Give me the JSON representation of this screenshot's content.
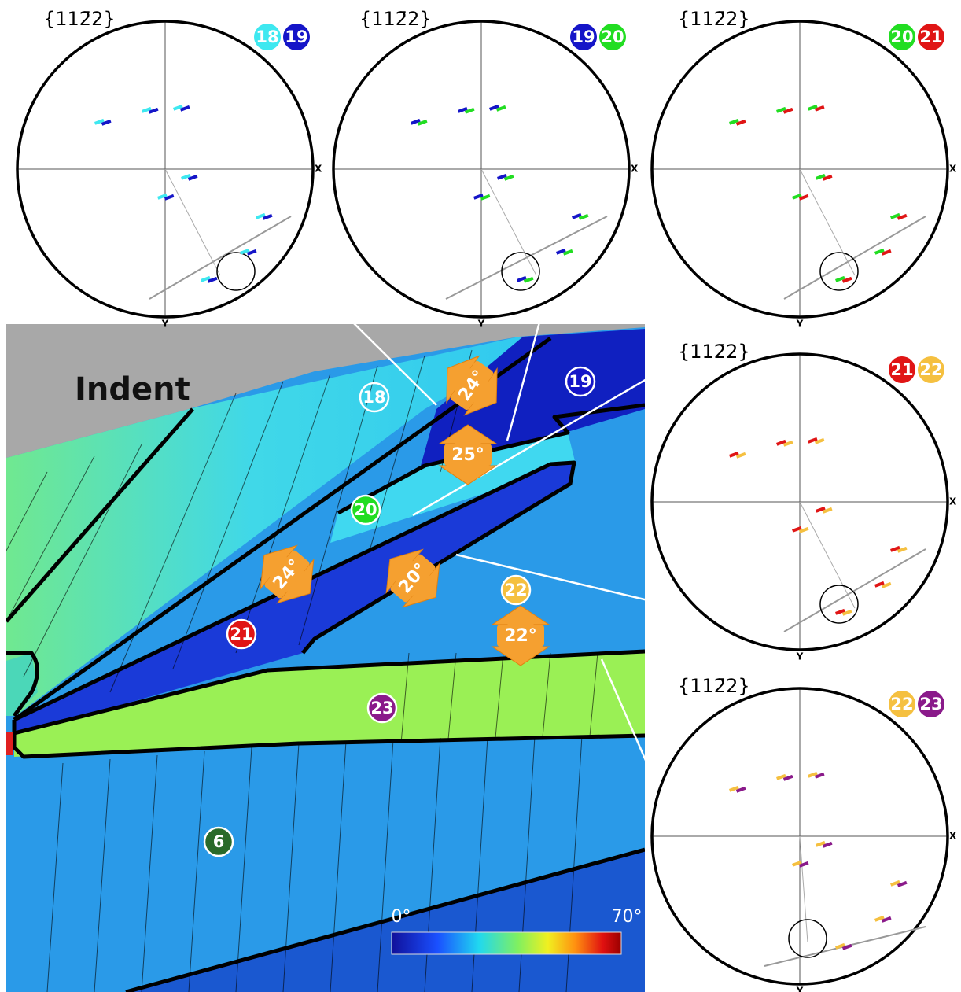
{
  "pole_figures": [
    {
      "label": "{112̄2}",
      "grains": [
        "18",
        "19"
      ],
      "x_axis": "X",
      "y_axis": "Y"
    },
    {
      "label": "{112̄2}",
      "grains": [
        "19",
        "20"
      ],
      "x_axis": "X",
      "y_axis": "Y"
    },
    {
      "label": "{112̄2}",
      "grains": [
        "20",
        "21"
      ],
      "x_axis": "X",
      "y_axis": "Y"
    },
    {
      "label": "{112̄2}",
      "grains": [
        "21",
        "22"
      ],
      "x_axis": "X",
      "y_axis": "Y"
    },
    {
      "label": "{112̄2}",
      "grains": [
        "22",
        "23"
      ],
      "x_axis": "X",
      "y_axis": "Y"
    }
  ],
  "map": {
    "title": "Indent",
    "grains": [
      "18",
      "19",
      "20",
      "21",
      "22",
      "23",
      "6"
    ],
    "misorientations": [
      "24°",
      "25°",
      "24°",
      "20°",
      "22°"
    ],
    "colorbar": {
      "min_label": "0°",
      "max_label": "70°"
    }
  }
}
